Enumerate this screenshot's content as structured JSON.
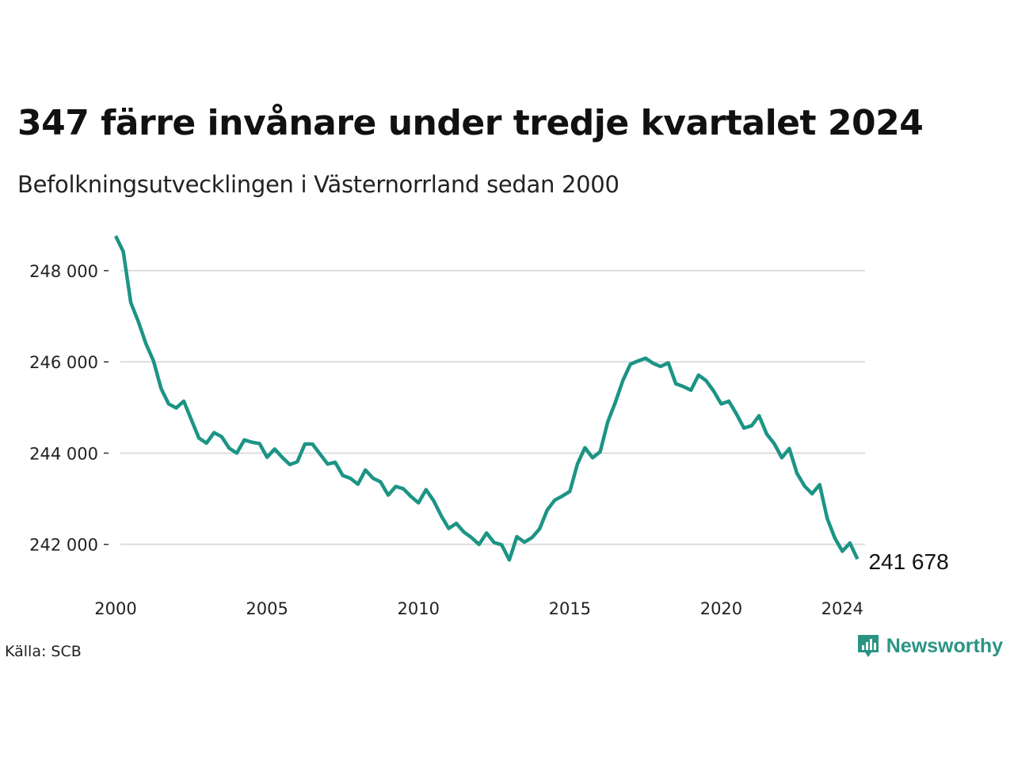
{
  "title": "347 färre invånare under tredje kvartalet 2024",
  "subtitle": "Befolkningsutvecklingen i Västernorrland sedan 2000",
  "source": "Källa: SCB",
  "brand": {
    "name": "Newsworthy",
    "color": "#2a9484",
    "icon": "chart-logo-icon"
  },
  "chart_data": {
    "type": "line",
    "title": "347 färre invånare under tredje kvartalet 2024",
    "xlabel": "",
    "ylabel": "",
    "xlim": [
      2000,
      2024.75
    ],
    "ylim": [
      241300,
      248900
    ],
    "x_ticks": [
      "2000",
      "2005",
      "2010",
      "2015",
      "2020",
      "2024"
    ],
    "y_ticks": [
      "242 000",
      "244 000",
      "246 000",
      "248 000"
    ],
    "grid": "horizontal",
    "line_color": "#1c9485",
    "end_label": "241 678",
    "series": [
      {
        "x_start": "2000 Q1",
        "step": "quarter",
        "values": [
          248760,
          248420,
          247300,
          246880,
          246400,
          246020,
          245420,
          245080,
          244990,
          245140,
          244730,
          244330,
          244220,
          244450,
          244360,
          244110,
          244000,
          244290,
          244240,
          244210,
          243910,
          244090,
          243910,
          243750,
          243810,
          244200,
          244200,
          243980,
          243760,
          243800,
          243510,
          243450,
          243320,
          243630,
          243450,
          243370,
          243080,
          243270,
          243220,
          243050,
          242910,
          243200,
          242960,
          242630,
          242350,
          242460,
          242270,
          242150,
          242000,
          242250,
          242040,
          241990,
          241660,
          242170,
          242050,
          242150,
          242340,
          242750,
          242970,
          243060,
          243160,
          243760,
          244120,
          243900,
          244030,
          244680,
          245110,
          245590,
          245950,
          246020,
          246080,
          245970,
          245900,
          245980,
          245520,
          245460,
          245380,
          245710,
          245590,
          245360,
          245080,
          245140,
          244860,
          244550,
          244600,
          244820,
          244420,
          244210,
          243900,
          244100,
          243560,
          243280,
          243110,
          243310,
          242570,
          242140,
          241850,
          242030,
          241678
        ]
      }
    ]
  }
}
